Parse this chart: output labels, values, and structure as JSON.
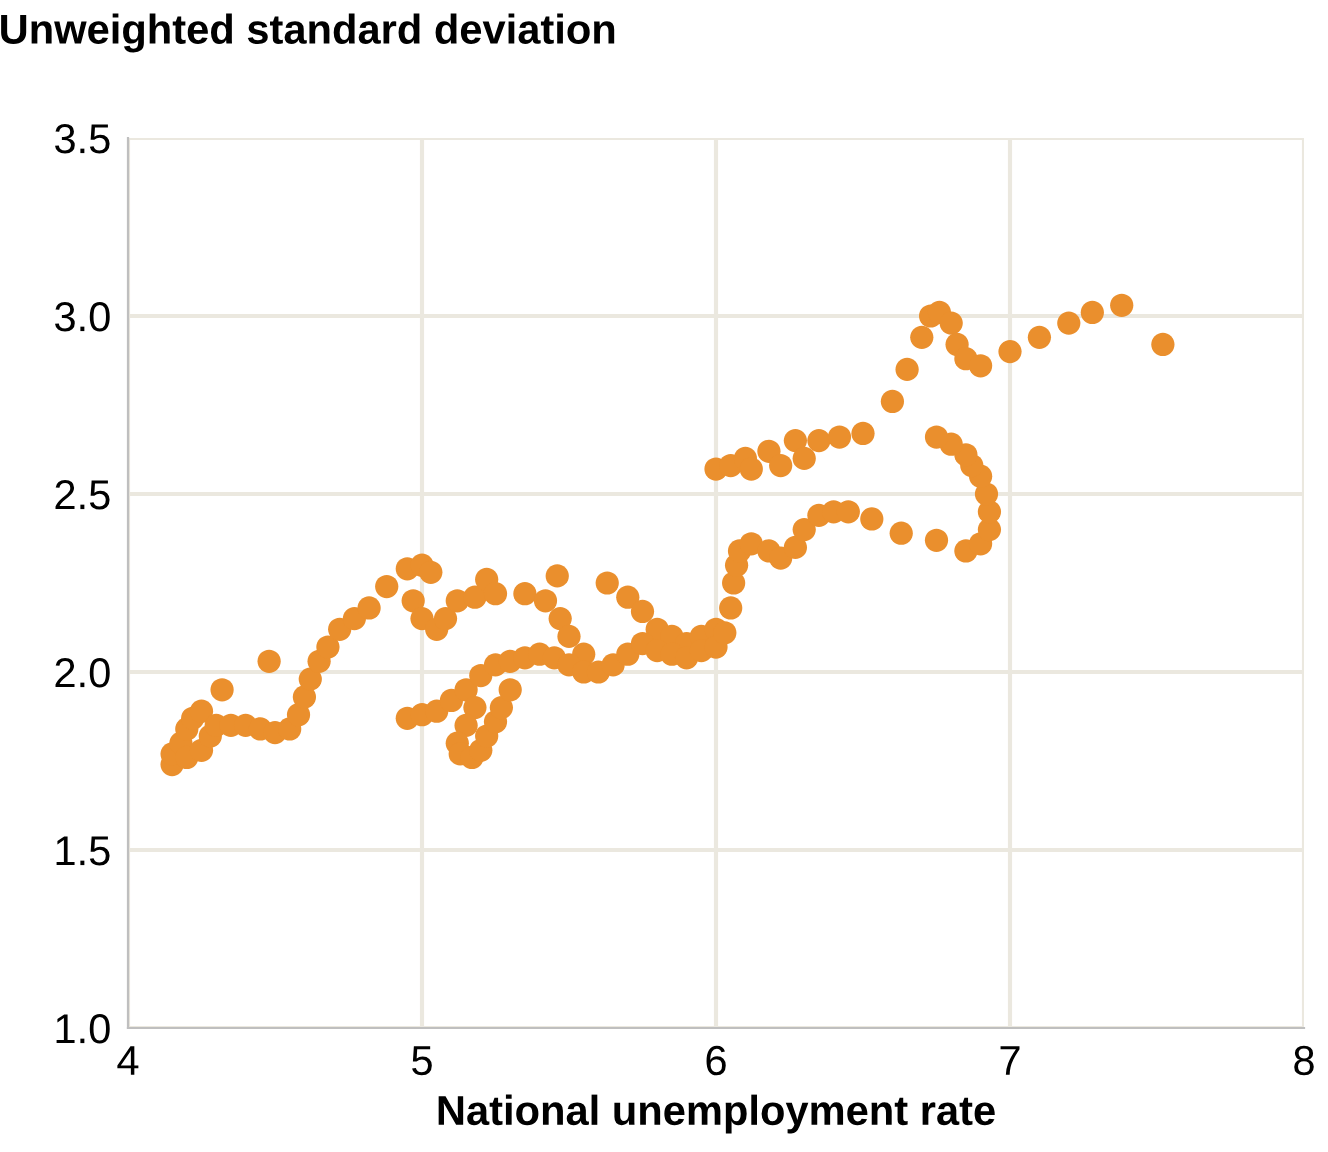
{
  "chart_data": {
    "type": "scatter",
    "xlabel": "National unemployment rate",
    "ylabel": "Unweighted standard deviation",
    "xlim": [
      4,
      8
    ],
    "ylim": [
      1.0,
      3.5
    ],
    "xticks": [
      4,
      5,
      6,
      7,
      8
    ],
    "yticks": [
      {
        "value": 1.0,
        "label": "1.0"
      },
      {
        "value": 1.5,
        "label": "1.5"
      },
      {
        "value": 2.0,
        "label": "2.0"
      },
      {
        "value": 2.5,
        "label": "2.5"
      },
      {
        "value": 3.0,
        "label": "3.0"
      },
      {
        "value": 3.5,
        "label": "3.5"
      }
    ],
    "grid": true,
    "marker": "circle",
    "series": [
      {
        "color": "#ea8f2d",
        "x": [
          4.15,
          4.15,
          4.18,
          4.2,
          4.22,
          4.25,
          4.2,
          4.25,
          4.28,
          4.3,
          4.32,
          4.35,
          4.4,
          4.45,
          4.48,
          4.5,
          4.55,
          4.58,
          4.6,
          4.62,
          4.65,
          4.68,
          4.72,
          4.77,
          4.82,
          4.88,
          4.95,
          5.0,
          5.03,
          4.97,
          5.0,
          5.05,
          5.08,
          5.12,
          5.18,
          5.22,
          5.25,
          5.35,
          5.42,
          5.46,
          5.47,
          5.5,
          5.55,
          5.63,
          5.7,
          5.75,
          5.8,
          5.85,
          5.9,
          5.95,
          6.0,
          4.95,
          5.0,
          5.05,
          5.1,
          5.15,
          5.2,
          5.25,
          5.3,
          5.35,
          5.4,
          5.45,
          5.5,
          5.55,
          5.6,
          5.65,
          5.7,
          5.75,
          5.8,
          5.85,
          5.9,
          5.95,
          6.0,
          6.03,
          6.05,
          6.06,
          6.07,
          6.08,
          6.12,
          6.18,
          6.22,
          6.27,
          6.3,
          6.35,
          6.4,
          6.45,
          6.53,
          6.63,
          6.75,
          6.85,
          6.9,
          6.93,
          6.93,
          6.92,
          6.9,
          6.87,
          6.85,
          6.8,
          6.75,
          5.18,
          5.15,
          5.12,
          5.13,
          5.17,
          5.2,
          5.22,
          5.25,
          5.27,
          5.3,
          6.0,
          6.05,
          6.1,
          6.12,
          6.18,
          6.22,
          6.27,
          6.3,
          6.35,
          6.42,
          6.5,
          6.6,
          6.65,
          6.7,
          6.73,
          6.76,
          6.8,
          6.82,
          6.85,
          6.9,
          7.0,
          7.1,
          7.2,
          7.28,
          7.38,
          7.52
        ],
        "values": [
          1.74,
          1.77,
          1.8,
          1.84,
          1.87,
          1.89,
          1.76,
          1.78,
          1.82,
          1.85,
          1.95,
          1.85,
          1.85,
          1.84,
          2.03,
          1.83,
          1.84,
          1.88,
          1.93,
          1.98,
          2.03,
          2.07,
          2.12,
          2.15,
          2.18,
          2.24,
          2.29,
          2.3,
          2.28,
          2.2,
          2.15,
          2.12,
          2.15,
          2.2,
          2.21,
          2.26,
          2.22,
          2.22,
          2.2,
          2.27,
          2.15,
          2.1,
          2.05,
          2.25,
          2.21,
          2.17,
          2.12,
          2.1,
          2.08,
          2.1,
          2.12,
          1.87,
          1.88,
          1.89,
          1.92,
          1.95,
          1.99,
          2.02,
          2.03,
          2.04,
          2.05,
          2.04,
          2.02,
          2.0,
          2.0,
          2.02,
          2.05,
          2.08,
          2.06,
          2.05,
          2.04,
          2.06,
          2.07,
          2.11,
          2.18,
          2.25,
          2.3,
          2.34,
          2.36,
          2.34,
          2.32,
          2.35,
          2.4,
          2.44,
          2.45,
          2.45,
          2.43,
          2.39,
          2.37,
          2.34,
          2.36,
          2.4,
          2.45,
          2.5,
          2.55,
          2.58,
          2.61,
          2.64,
          2.66,
          1.9,
          1.85,
          1.8,
          1.77,
          1.76,
          1.78,
          1.82,
          1.86,
          1.9,
          1.95,
          2.57,
          2.58,
          2.6,
          2.57,
          2.62,
          2.58,
          2.65,
          2.6,
          2.65,
          2.66,
          2.67,
          2.76,
          2.85,
          2.94,
          3.0,
          3.01,
          2.98,
          2.92,
          2.88,
          2.86,
          2.9,
          2.94,
          2.98,
          3.01,
          3.03,
          2.92
        ]
      }
    ]
  }
}
